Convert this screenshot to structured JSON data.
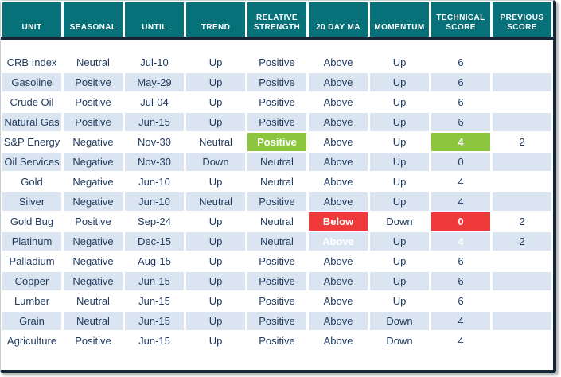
{
  "colors": {
    "teal": "#077179",
    "dark": "#152639",
    "stripe": "#dbe5f1",
    "text": "#1f3a5f",
    "green": "#8cc63f",
    "red": "#ee3a3b",
    "highlight_text": "#ffffff"
  },
  "chart_data": {
    "type": "table",
    "columns": [
      "UNIT",
      "SEASONAL",
      "UNTIL",
      "TREND",
      "RELATIVE STRENGTH",
      "20 DAY MA",
      "MOMENTUM",
      "TECHNICAL SCORE",
      "PREVIOUS SCORE"
    ],
    "rows": [
      {
        "cells": [
          "CRB Index",
          "Neutral",
          "Jul-10",
          "Up",
          "Positive",
          "Above",
          "Up",
          "6",
          ""
        ]
      },
      {
        "cells": [
          "Gasoline",
          "Positive",
          "May-29",
          "Up",
          "Positive",
          "Above",
          "Up",
          "6",
          ""
        ]
      },
      {
        "cells": [
          "Crude Oil",
          "Positive",
          "Jul-04",
          "Up",
          "Positive",
          "Above",
          "Up",
          "6",
          ""
        ]
      },
      {
        "cells": [
          "Natural Gas",
          "Positive",
          "Jun-15",
          "Up",
          "Positive",
          "Above",
          "Up",
          "6",
          ""
        ]
      },
      {
        "cells": [
          "S&P Energy",
          "Negative",
          "Nov-30",
          "Neutral",
          {
            "value": "Positive",
            "highlight": "green"
          },
          "Above",
          "Up",
          {
            "value": "4",
            "highlight": "green"
          },
          "2"
        ]
      },
      {
        "cells": [
          "Oil Services",
          "Negative",
          "Nov-30",
          "Down",
          "Neutral",
          "Above",
          "Up",
          "0",
          ""
        ]
      },
      {
        "cells": [
          "Gold",
          "Negative",
          "Jun-10",
          "Up",
          "Neutral",
          "Above",
          "Up",
          "4",
          ""
        ]
      },
      {
        "cells": [
          "Silver",
          "Negative",
          "Jun-10",
          "Neutral",
          "Positive",
          "Above",
          "Up",
          "4",
          ""
        ]
      },
      {
        "cells": [
          "Gold Bug",
          "Positive",
          "Sep-24",
          "Up",
          "Neutral",
          {
            "value": "Below",
            "highlight": "red"
          },
          "Down",
          {
            "value": "0",
            "highlight": "red"
          },
          "2"
        ]
      },
      {
        "cells": [
          "Platinum",
          "Negative",
          "Dec-15",
          "Up",
          "Neutral",
          {
            "value": "Above",
            "highlight": "green"
          },
          "Up",
          {
            "value": "4",
            "highlight": "green"
          },
          "2"
        ]
      },
      {
        "cells": [
          "Palladium",
          "Negative",
          "Aug-15",
          "Up",
          "Positive",
          "Above",
          "Up",
          "6",
          ""
        ]
      },
      {
        "cells": [
          "Copper",
          "Negative",
          "Jun-15",
          "Up",
          "Positive",
          "Above",
          "Up",
          "6",
          ""
        ]
      },
      {
        "cells": [
          "Lumber",
          "Neutral",
          "Jun-15",
          "Up",
          "Positive",
          "Above",
          "Up",
          "6",
          ""
        ]
      },
      {
        "cells": [
          "Grain",
          "Neutral",
          "Jun-15",
          "Up",
          "Positive",
          "Above",
          "Down",
          "4",
          ""
        ]
      },
      {
        "cells": [
          "Agriculture",
          "Positive",
          "Jun-15",
          "Up",
          "Positive",
          "Above",
          "Down",
          "4",
          ""
        ]
      }
    ]
  }
}
